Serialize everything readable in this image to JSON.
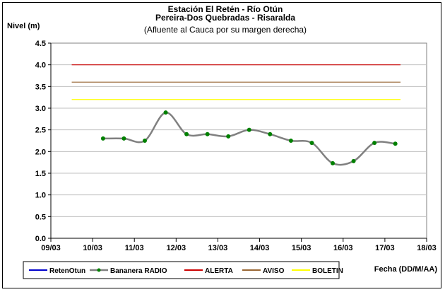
{
  "chart_data": {
    "type": "line",
    "title_lines": [
      "Estación El Retén - Río Otún",
      "Pereira-Dos Quebradas - Risaralda"
    ],
    "subtitle": "(Afluente al Cauca por su margen derecha)",
    "ylabel": "Nivel (m)",
    "xlabel": "Fecha (DD/M/AA)",
    "ylim": [
      0,
      4.5
    ],
    "yticks": [
      "0.0",
      "0.5",
      "1.0",
      "1.5",
      "2.0",
      "2.5",
      "3.0",
      "3.5",
      "4.0",
      "4.5"
    ],
    "xlim": [
      "2003-03-09",
      "2003-03-18"
    ],
    "xticks": [
      {
        "date": "2003-03-09",
        "label": "09/03"
      },
      {
        "date": "2003-03-10",
        "label": "10/03"
      },
      {
        "date": "2003-03-11",
        "label": "11/03"
      },
      {
        "date": "2003-03-12",
        "label": "12/03"
      },
      {
        "date": "2003-03-13",
        "label": "13/03"
      },
      {
        "date": "2003-03-14",
        "label": "14/03"
      },
      {
        "date": "2003-03-15",
        "label": "15/03"
      },
      {
        "date": "2003-03-16",
        "label": "16/03"
      },
      {
        "date": "2003-03-17",
        "label": "17/03"
      },
      {
        "date": "2003-03-18",
        "label": "18/03"
      }
    ],
    "grid": {
      "horizontal": true,
      "vertical": false
    },
    "legend_position": "bottom",
    "series": [
      {
        "name": "RetenOtun",
        "color": "#0000cc",
        "style": "line",
        "points": []
      },
      {
        "name": "Bananera RADIO",
        "color": "#808080",
        "marker_color": "#008000",
        "style": "smooth-line-markers",
        "points": [
          {
            "x": "2003-03-10 06:00",
            "y": 2.3
          },
          {
            "x": "2003-03-10 18:00",
            "y": 2.3
          },
          {
            "x": "2003-03-11 06:00",
            "y": 2.25
          },
          {
            "x": "2003-03-11 18:00",
            "y": 2.9
          },
          {
            "x": "2003-03-12 06:00",
            "y": 2.4
          },
          {
            "x": "2003-03-12 18:00",
            "y": 2.4
          },
          {
            "x": "2003-03-13 06:00",
            "y": 2.35
          },
          {
            "x": "2003-03-13 18:00",
            "y": 2.5
          },
          {
            "x": "2003-03-14 06:00",
            "y": 2.4
          },
          {
            "x": "2003-03-14 18:00",
            "y": 2.25
          },
          {
            "x": "2003-03-15 06:00",
            "y": 2.2
          },
          {
            "x": "2003-03-15 18:00",
            "y": 1.73
          },
          {
            "x": "2003-03-16 06:00",
            "y": 1.78
          },
          {
            "x": "2003-03-16 18:00",
            "y": 2.2
          },
          {
            "x": "2003-03-17 06:00",
            "y": 2.18
          }
        ]
      },
      {
        "name": "ALERTA",
        "color": "#cc0000",
        "style": "line",
        "points": [
          {
            "x": "2003-03-09 12:00",
            "y": 4.0
          },
          {
            "x": "2003-03-17 09:00",
            "y": 4.0
          }
        ]
      },
      {
        "name": "AVISO",
        "color": "#996633",
        "style": "line",
        "points": [
          {
            "x": "2003-03-09 12:00",
            "y": 3.6
          },
          {
            "x": "2003-03-17 09:00",
            "y": 3.6
          }
        ]
      },
      {
        "name": "BOLETIN",
        "color": "#ffff00",
        "style": "line",
        "points": [
          {
            "x": "2003-03-09 12:00",
            "y": 3.2
          },
          {
            "x": "2003-03-17 09:00",
            "y": 3.2
          }
        ]
      }
    ]
  }
}
